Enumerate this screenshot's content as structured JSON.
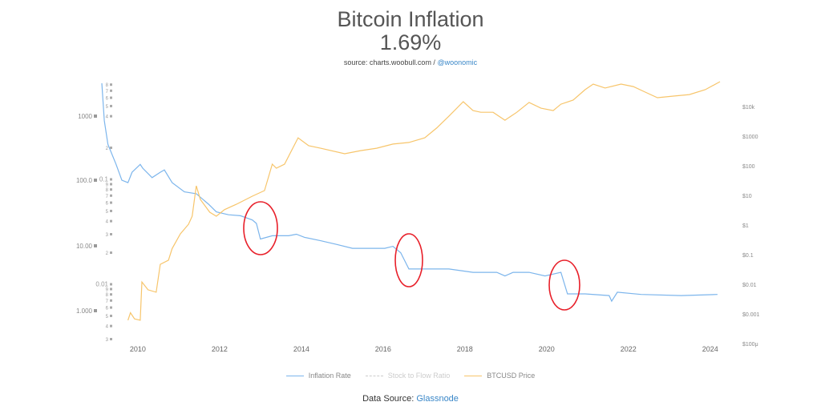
{
  "header": {
    "title": "Bitcoin Inflation",
    "value": "1.69%",
    "source_prefix": "source: charts.woobull.com / ",
    "source_link": "@woonomic"
  },
  "footer": {
    "prefix": "Data Source: ",
    "link": "Glassnode"
  },
  "chart_data": {
    "type": "line",
    "title": "Bitcoin Inflation",
    "x_ticks": [
      "2010",
      "2012",
      "2014",
      "2016",
      "2018",
      "2020",
      "2022",
      "2024"
    ],
    "xlim": [
      2009.12,
      2024.24
    ],
    "left_outer_axis": {
      "scale": "log",
      "ticks": [
        "1000",
        "100.0",
        "10.00",
        "1.000"
      ]
    },
    "left_inner_axis": {
      "scale": "log",
      "ticks": [
        {
          "v": 0.8,
          "l": "8"
        },
        {
          "v": 0.7,
          "l": "7"
        },
        {
          "v": 0.6,
          "l": "6"
        },
        {
          "v": 0.5,
          "l": "5"
        },
        {
          "v": 0.4,
          "l": "4"
        },
        {
          "v": 0.2,
          "l": "2"
        },
        {
          "v": 0.1,
          "l": "0.1"
        },
        {
          "v": 0.09,
          "l": "9"
        },
        {
          "v": 0.08,
          "l": "8"
        },
        {
          "v": 0.07,
          "l": "7"
        },
        {
          "v": 0.06,
          "l": "6"
        },
        {
          "v": 0.05,
          "l": "5"
        },
        {
          "v": 0.04,
          "l": "4"
        },
        {
          "v": 0.03,
          "l": "3"
        },
        {
          "v": 0.02,
          "l": "2"
        },
        {
          "v": 0.01,
          "l": "0.01"
        },
        {
          "v": 0.009,
          "l": "9"
        },
        {
          "v": 0.008,
          "l": "8"
        },
        {
          "v": 0.007,
          "l": "7"
        },
        {
          "v": 0.006,
          "l": "6"
        },
        {
          "v": 0.005,
          "l": "5"
        },
        {
          "v": 0.004,
          "l": "4"
        },
        {
          "v": 0.003,
          "l": "3"
        }
      ]
    },
    "right_axis": {
      "scale": "log",
      "ticks": [
        {
          "v": 10000,
          "l": "$10k"
        },
        {
          "v": 1000,
          "l": "$1000"
        },
        {
          "v": 100,
          "l": "$100"
        },
        {
          "v": 10,
          "l": "$10"
        },
        {
          "v": 1,
          "l": "$1"
        },
        {
          "v": 0.1,
          "l": "$0.1"
        },
        {
          "v": 0.01,
          "l": "$0.01"
        },
        {
          "v": 0.001,
          "l": "$0.001"
        },
        {
          "v": 0.0001,
          "l": "$100μ"
        }
      ]
    },
    "legend": {
      "placement": "bottom",
      "items": [
        {
          "name": "Inflation Rate",
          "color": "#7cb5ec",
          "style": "solid"
        },
        {
          "name": "Stock to Flow Ratio",
          "color": "#cccccc",
          "style": "dashed",
          "hidden": true
        },
        {
          "name": "BTCUSD Price",
          "color": "#f7c56b",
          "style": "solid"
        }
      ]
    },
    "series": [
      {
        "name": "Inflation Rate",
        "axis": "left_inner",
        "color": "#7cb5ec",
        "x": [
          2009.12,
          2009.18,
          2009.27,
          2009.47,
          2009.61,
          2009.76,
          2009.86,
          2010.06,
          2010.12,
          2010.35,
          2010.55,
          2010.65,
          2010.84,
          2011.14,
          2011.43,
          2011.73,
          2011.92,
          2012.22,
          2012.51,
          2012.8,
          2012.9,
          2013.0,
          2013.29,
          2013.69,
          2013.88,
          2014.08,
          2014.47,
          2014.86,
          2015.25,
          2015.65,
          2016.04,
          2016.24,
          2016.43,
          2016.63,
          2017.02,
          2017.61,
          2018.2,
          2018.78,
          2018.98,
          2019.18,
          2019.57,
          2019.96,
          2020.35,
          2020.51,
          2020.94,
          2021.53,
          2021.59,
          2021.73,
          2022.31,
          2023.29,
          2024.18
        ],
        "y": [
          0.826,
          0.363,
          0.216,
          0.139,
          0.098,
          0.093,
          0.117,
          0.139,
          0.128,
          0.104,
          0.117,
          0.123,
          0.093,
          0.076,
          0.073,
          0.058,
          0.049,
          0.046,
          0.045,
          0.041,
          0.038,
          0.027,
          0.029,
          0.029,
          0.03,
          0.028,
          0.026,
          0.024,
          0.022,
          0.022,
          0.022,
          0.023,
          0.02,
          0.014,
          0.014,
          0.014,
          0.013,
          0.013,
          0.012,
          0.013,
          0.013,
          0.012,
          0.013,
          0.0081,
          0.0081,
          0.0078,
          0.0069,
          0.0084,
          0.008,
          0.0078,
          0.008
        ]
      },
      {
        "name": "BTCUSD Price",
        "axis": "right",
        "color": "#f7c56b",
        "x": [
          2009.76,
          2009.82,
          2009.92,
          2010.06,
          2010.1,
          2010.25,
          2010.45,
          2010.55,
          2010.75,
          2010.84,
          2011.04,
          2011.24,
          2011.33,
          2011.43,
          2011.53,
          2011.76,
          2011.92,
          2012.12,
          2012.41,
          2012.8,
          2013.1,
          2013.29,
          2013.39,
          2013.59,
          2013.92,
          2014.18,
          2014.47,
          2015.06,
          2015.45,
          2015.84,
          2016.24,
          2016.63,
          2017.02,
          2017.31,
          2017.61,
          2017.96,
          2018.2,
          2018.39,
          2018.69,
          2018.98,
          2019.27,
          2019.57,
          2019.86,
          2020.16,
          2020.35,
          2020.65,
          2020.94,
          2021.14,
          2021.43,
          2021.82,
          2022.12,
          2022.41,
          2022.71,
          2023.1,
          2023.49,
          2023.88,
          2024.24
        ],
        "y": [
          0.00061,
          0.0011,
          0.00068,
          0.00061,
          0.012,
          0.0065,
          0.0054,
          0.047,
          0.065,
          0.16,
          0.5,
          1.06,
          1.98,
          21,
          7.3,
          2.7,
          1.98,
          3.3,
          5.0,
          9.4,
          14.5,
          113,
          83,
          113,
          880,
          475,
          390,
          254,
          325,
          390,
          540,
          610,
          880,
          1870,
          4700,
          14500,
          7300,
          6400,
          6400,
          3450,
          6400,
          13700,
          8800,
          7300,
          12000,
          16500,
          37000,
          57000,
          42000,
          57000,
          47000,
          30600,
          19800,
          22400,
          25300,
          37000,
          69000
        ]
      }
    ],
    "annotations": [
      {
        "shape": "circle",
        "color": "#e8202a",
        "x": 2012.9
      },
      {
        "shape": "circle",
        "color": "#e8202a",
        "x": 2016.6
      },
      {
        "shape": "circle",
        "color": "#e8202a",
        "x": 2020.4
      }
    ]
  }
}
